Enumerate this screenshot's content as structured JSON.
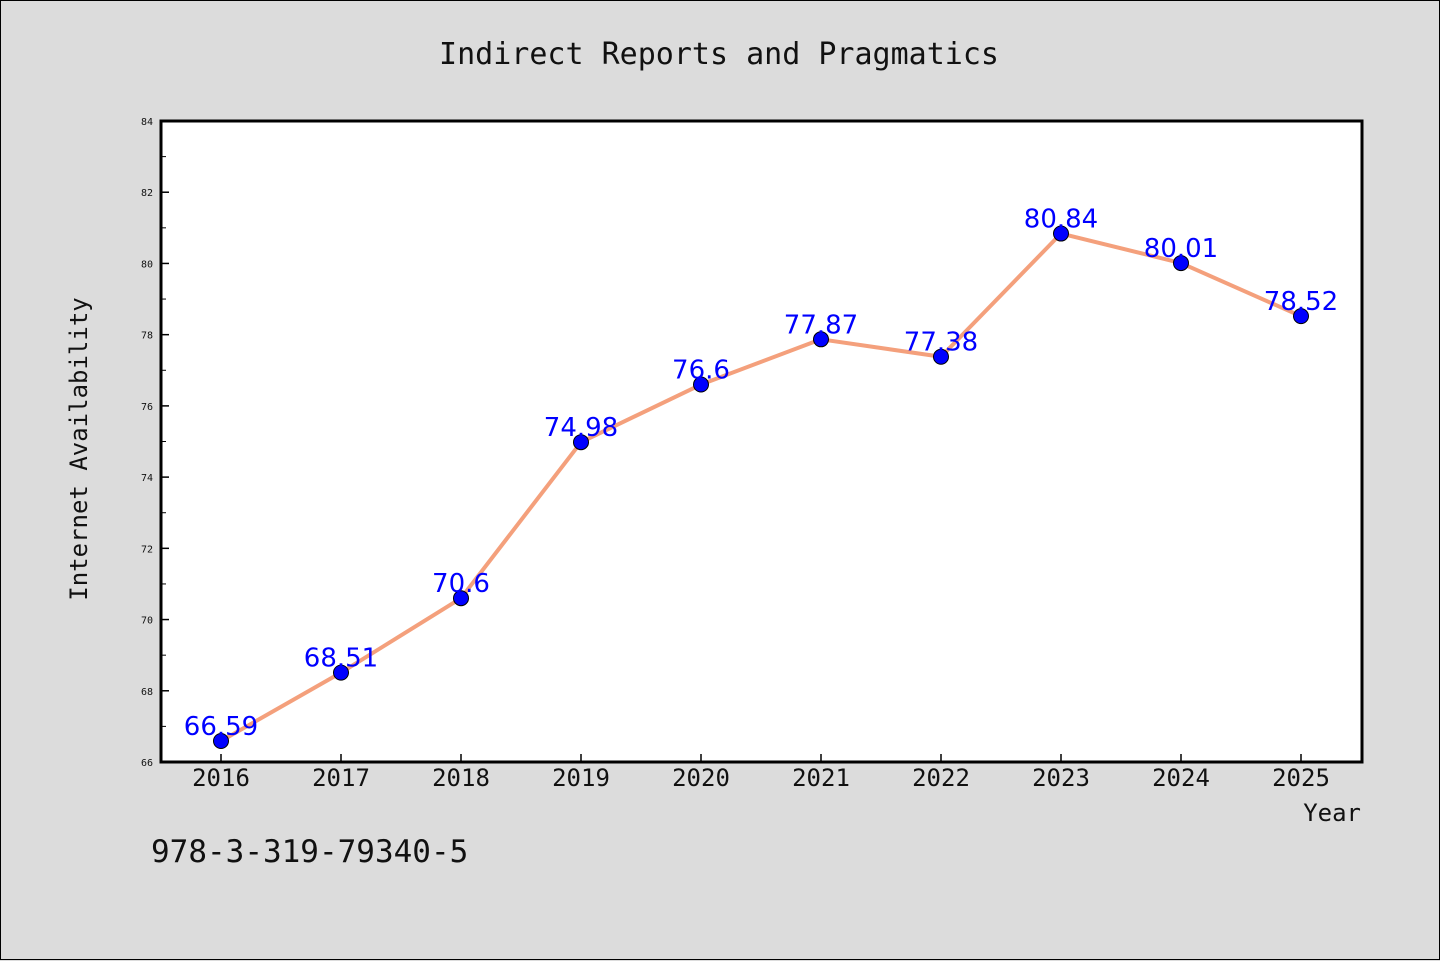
{
  "chart_data": {
    "type": "line",
    "title": "Indirect Reports and Pragmatics",
    "xlabel": "Year",
    "ylabel": "Internet Availability",
    "categories": [
      "2016",
      "2017",
      "2018",
      "2019",
      "2020",
      "2021",
      "2022",
      "2023",
      "2024",
      "2025"
    ],
    "series": [
      {
        "values": [
          66.59,
          68.51,
          70.6,
          74.98,
          76.6,
          77.87,
          77.38,
          80.84,
          80.01,
          78.52
        ],
        "data_labels": [
          "66.59",
          "68.51",
          "70.6",
          "74.98",
          "76.6",
          "77.87",
          "77.38",
          "80.84",
          "80.01",
          "78.52"
        ],
        "line_color": "#f4a07c",
        "marker_color": "#0000ff"
      }
    ],
    "ylim": [
      66,
      84
    ],
    "y_ticks": [
      66,
      68,
      70,
      72,
      74,
      76,
      78,
      80,
      82,
      84
    ],
    "grid": false,
    "legend": "none",
    "label_color": "#0000ff"
  },
  "footer_text": "978-3-319-79340-5"
}
